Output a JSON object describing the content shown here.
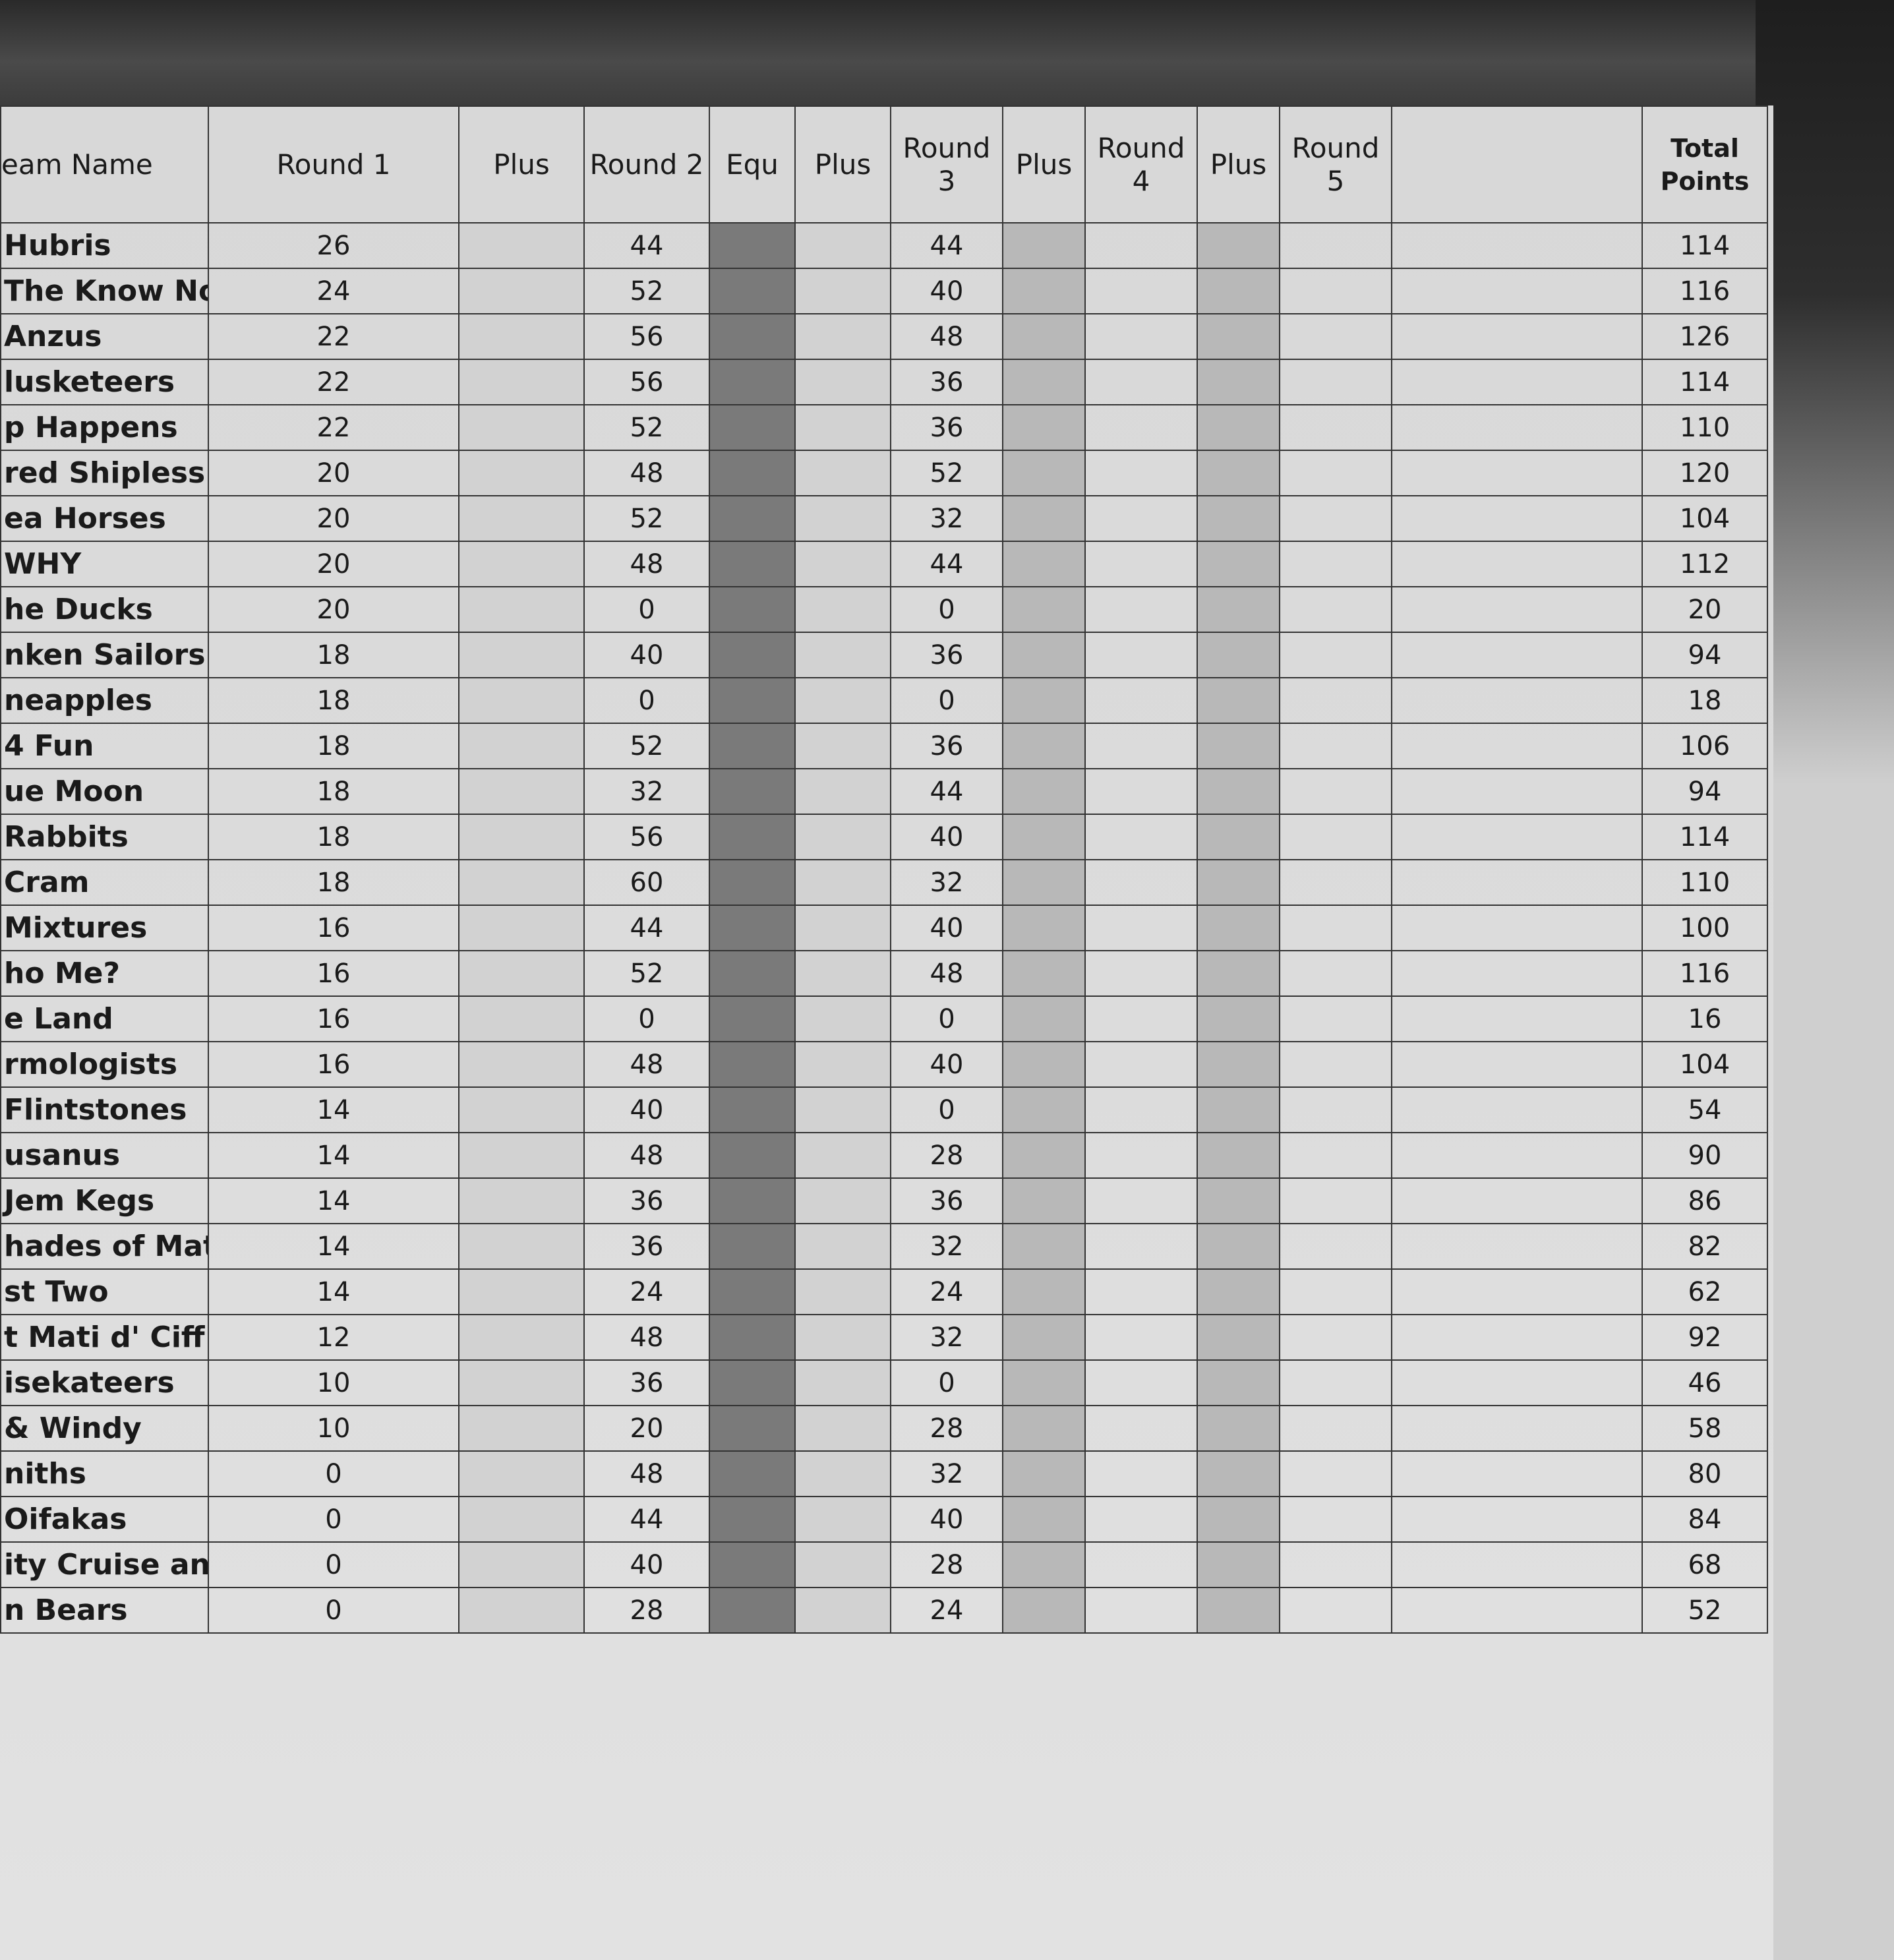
{
  "headers": {
    "team_name": "eam Name",
    "round1": "Round 1",
    "plus1": "Plus",
    "round2": "Round 2",
    "equ": "Equ",
    "plus2": "Plus",
    "round3": "Round 3",
    "plus3": "Plus",
    "round4": "Round 4",
    "plus4": "Plus",
    "round5": "Round 5",
    "blank": "",
    "total": "Total Points"
  },
  "rows": [
    {
      "team": "Hubris",
      "r1": "26",
      "r2": "44",
      "r3": "44",
      "total": "114"
    },
    {
      "team": "The Know Nothing",
      "r1": "24",
      "r2": "52",
      "r3": "40",
      "total": "116"
    },
    {
      "team": "Anzus",
      "r1": "22",
      "r2": "56",
      "r3": "48",
      "total": "126"
    },
    {
      "team": "lusketeers",
      "r1": "22",
      "r2": "56",
      "r3": "36",
      "total": "114"
    },
    {
      "team": "p Happens",
      "r1": "22",
      "r2": "52",
      "r3": "36",
      "total": "110"
    },
    {
      "team": "red Shipless",
      "r1": "20",
      "r2": "48",
      "r3": "52",
      "total": "120"
    },
    {
      "team": "ea Horses",
      "r1": "20",
      "r2": "52",
      "r3": "32",
      "total": "104"
    },
    {
      "team": "WHY",
      "r1": "20",
      "r2": "48",
      "r3": "44",
      "total": "112"
    },
    {
      "team": "he Ducks",
      "r1": "20",
      "r2": "0",
      "r3": "0",
      "total": "20"
    },
    {
      "team": "nken Sailors",
      "r1": "18",
      "r2": "40",
      "r3": "36",
      "total": "94"
    },
    {
      "team": "neapples",
      "r1": "18",
      "r2": "0",
      "r3": "0",
      "total": "18"
    },
    {
      "team": "4 Fun",
      "r1": "18",
      "r2": "52",
      "r3": "36",
      "total": "106"
    },
    {
      "team": "ue Moon",
      "r1": "18",
      "r2": "32",
      "r3": "44",
      "total": "94"
    },
    {
      "team": "Rabbits",
      "r1": "18",
      "r2": "56",
      "r3": "40",
      "total": "114"
    },
    {
      "team": "Cram",
      "r1": "18",
      "r2": "60",
      "r3": "32",
      "total": "110"
    },
    {
      "team": "Mixtures",
      "r1": "16",
      "r2": "44",
      "r3": "40",
      "total": "100"
    },
    {
      "team": "ho Me?",
      "r1": "16",
      "r2": "52",
      "r3": "48",
      "total": "116"
    },
    {
      "team": "e Land",
      "r1": "16",
      "r2": "0",
      "r3": "0",
      "total": "16"
    },
    {
      "team": "rmologists",
      "r1": "16",
      "r2": "48",
      "r3": "40",
      "total": "104"
    },
    {
      "team": "Flintstones",
      "r1": "14",
      "r2": "40",
      "r3": "0",
      "total": "54"
    },
    {
      "team": "usanus",
      "r1": "14",
      "r2": "48",
      "r3": "28",
      "total": "90"
    },
    {
      "team": "Jem Kegs",
      "r1": "14",
      "r2": "36",
      "r3": "36",
      "total": "86"
    },
    {
      "team": "hades of Matter",
      "r1": "14",
      "r2": "36",
      "r3": "32",
      "total": "82"
    },
    {
      "team": "st Two",
      "r1": "14",
      "r2": "24",
      "r3": "24",
      "total": "62"
    },
    {
      "team": "t Mati d' Ciff",
      "r1": "12",
      "r2": "48",
      "r3": "32",
      "total": "92"
    },
    {
      "team": "isekateers",
      "r1": "10",
      "r2": "36",
      "r3": "0",
      "total": "46"
    },
    {
      "team": "& Windy",
      "r1": "10",
      "r2": "20",
      "r3": "28",
      "total": "58"
    },
    {
      "team": "niths",
      "r1": "0",
      "r2": "48",
      "r3": "32",
      "total": "80"
    },
    {
      "team": "Oifakas",
      "r1": "0",
      "r2": "44",
      "r3": "40",
      "total": "84"
    },
    {
      "team": "ity Cruise ans",
      "r1": "0",
      "r2": "40",
      "r3": "28",
      "total": "68"
    },
    {
      "team": "n Bears",
      "r1": "0",
      "r2": "28",
      "r3": "24",
      "total": "52"
    }
  ]
}
